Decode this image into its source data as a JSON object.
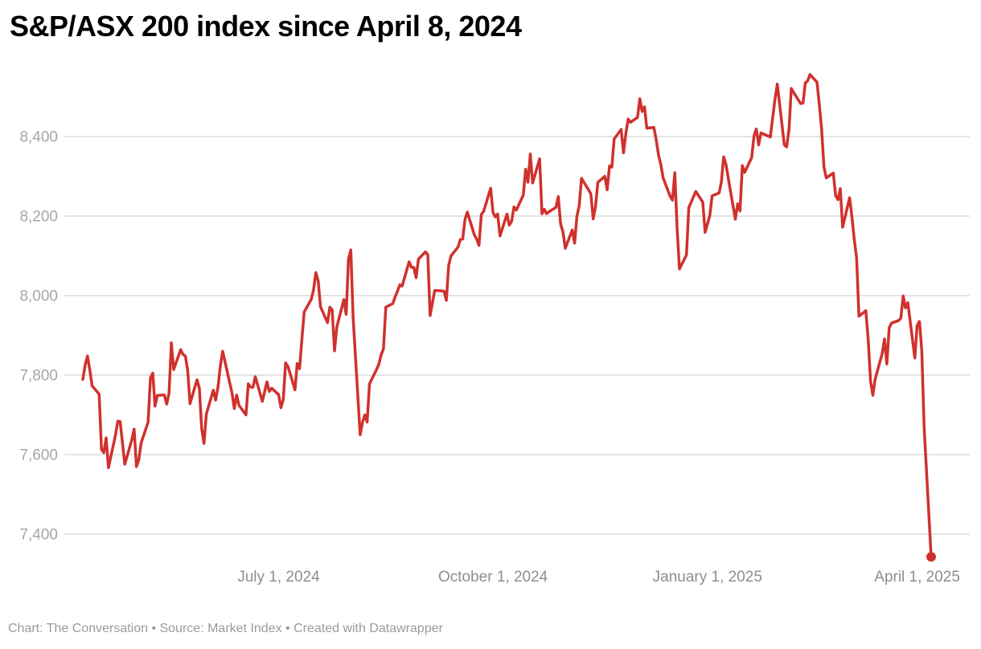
{
  "header": {
    "title": "S&P/ASX 200 index since April 8, 2024"
  },
  "footer": {
    "text": "Chart: The Conversation • Source: Market Index • Created with Datawrapper"
  },
  "colors": {
    "line": "#d0312d",
    "grid": "#dcdcdc",
    "y_labels": "#a6a6a6",
    "x_labels": "#8e8e8e",
    "title": "#000000",
    "footer": "#9b9b9b",
    "background": "#ffffff"
  },
  "chart_data": {
    "type": "line",
    "title": "S&P/ASX 200 index since April 8, 2024",
    "series_name": "S&P/ASX 200 index",
    "xlabel": "",
    "ylabel": "",
    "grid": true,
    "legend_position": "none",
    "end_dot": true,
    "ylim": [
      7329,
      8566
    ],
    "xlim": [
      "2024-04-08",
      "2025-04-07"
    ],
    "y_ticks": [
      {
        "value": 8400,
        "label": "8,400"
      },
      {
        "value": 8200,
        "label": "8,200"
      },
      {
        "value": 8000,
        "label": "8,000"
      },
      {
        "value": 7800,
        "label": "7,800"
      },
      {
        "value": 7600,
        "label": "7,600"
      },
      {
        "value": 7400,
        "label": "7,400"
      }
    ],
    "x_ticks": [
      {
        "date": "2024-07-01",
        "label": "July 1, 2024"
      },
      {
        "date": "2024-10-01",
        "label": "October 1, 2024"
      },
      {
        "date": "2025-01-01",
        "label": "January 1, 2025"
      },
      {
        "date": "2025-04-01",
        "label": "April 1, 2025"
      }
    ],
    "dates": [
      "2024-04-08",
      "2024-04-09",
      "2024-04-10",
      "2024-04-11",
      "2024-04-12",
      "2024-04-15",
      "2024-04-16",
      "2024-04-17",
      "2024-04-18",
      "2024-04-19",
      "2024-04-22",
      "2024-04-23",
      "2024-04-24",
      "2024-04-26",
      "2024-04-29",
      "2024-04-30",
      "2024-05-01",
      "2024-05-02",
      "2024-05-03",
      "2024-05-06",
      "2024-05-07",
      "2024-05-08",
      "2024-05-09",
      "2024-05-10",
      "2024-05-13",
      "2024-05-14",
      "2024-05-15",
      "2024-05-16",
      "2024-05-17",
      "2024-05-20",
      "2024-05-21",
      "2024-05-22",
      "2024-05-23",
      "2024-05-24",
      "2024-05-27",
      "2024-05-28",
      "2024-05-29",
      "2024-05-30",
      "2024-05-31",
      "2024-06-03",
      "2024-06-04",
      "2024-06-05",
      "2024-06-06",
      "2024-06-07",
      "2024-06-11",
      "2024-06-12",
      "2024-06-13",
      "2024-06-14",
      "2024-06-17",
      "2024-06-18",
      "2024-06-19",
      "2024-06-20",
      "2024-06-21",
      "2024-06-24",
      "2024-06-25",
      "2024-06-26",
      "2024-06-27",
      "2024-06-28",
      "2024-07-01",
      "2024-07-02",
      "2024-07-03",
      "2024-07-04",
      "2024-07-05",
      "2024-07-08",
      "2024-07-09",
      "2024-07-10",
      "2024-07-11",
      "2024-07-12",
      "2024-07-15",
      "2024-07-16",
      "2024-07-17",
      "2024-07-18",
      "2024-07-19",
      "2024-07-22",
      "2024-07-23",
      "2024-07-24",
      "2024-07-25",
      "2024-07-26",
      "2024-07-29",
      "2024-07-30",
      "2024-07-31",
      "2024-08-01",
      "2024-08-02",
      "2024-08-05",
      "2024-08-06",
      "2024-08-07",
      "2024-08-08",
      "2024-08-09",
      "2024-08-12",
      "2024-08-13",
      "2024-08-14",
      "2024-08-15",
      "2024-08-16",
      "2024-08-19",
      "2024-08-20",
      "2024-08-21",
      "2024-08-22",
      "2024-08-23",
      "2024-08-26",
      "2024-08-27",
      "2024-08-28",
      "2024-08-29",
      "2024-08-30",
      "2024-09-02",
      "2024-09-03",
      "2024-09-04",
      "2024-09-05",
      "2024-09-06",
      "2024-09-09",
      "2024-09-10",
      "2024-09-11",
      "2024-09-12",
      "2024-09-13",
      "2024-09-16",
      "2024-09-17",
      "2024-09-18",
      "2024-09-19",
      "2024-09-20",
      "2024-09-23",
      "2024-09-24",
      "2024-09-25",
      "2024-09-26",
      "2024-09-27",
      "2024-09-30",
      "2024-10-01",
      "2024-10-02",
      "2024-10-03",
      "2024-10-04",
      "2024-10-07",
      "2024-10-08",
      "2024-10-09",
      "2024-10-10",
      "2024-10-11",
      "2024-10-14",
      "2024-10-15",
      "2024-10-16",
      "2024-10-17",
      "2024-10-18",
      "2024-10-21",
      "2024-10-22",
      "2024-10-23",
      "2024-10-24",
      "2024-10-25",
      "2024-10-28",
      "2024-10-29",
      "2024-10-30",
      "2024-10-31",
      "2024-11-01",
      "2024-11-04",
      "2024-11-05",
      "2024-11-06",
      "2024-11-07",
      "2024-11-08",
      "2024-11-11",
      "2024-11-12",
      "2024-11-13",
      "2024-11-14",
      "2024-11-15",
      "2024-11-18",
      "2024-11-19",
      "2024-11-20",
      "2024-11-21",
      "2024-11-22",
      "2024-11-25",
      "2024-11-26",
      "2024-11-27",
      "2024-11-28",
      "2024-11-29",
      "2024-12-02",
      "2024-12-03",
      "2024-12-04",
      "2024-12-05",
      "2024-12-06",
      "2024-12-09",
      "2024-12-10",
      "2024-12-11",
      "2024-12-12",
      "2024-12-13",
      "2024-12-16",
      "2024-12-17",
      "2024-12-18",
      "2024-12-19",
      "2024-12-20",
      "2024-12-23",
      "2024-12-24",
      "2024-12-27",
      "2024-12-30",
      "2024-12-31",
      "2025-01-02",
      "2025-01-03",
      "2025-01-06",
      "2025-01-07",
      "2025-01-08",
      "2025-01-09",
      "2025-01-10",
      "2025-01-13",
      "2025-01-14",
      "2025-01-15",
      "2025-01-16",
      "2025-01-17",
      "2025-01-20",
      "2025-01-21",
      "2025-01-22",
      "2025-01-23",
      "2025-01-24",
      "2025-01-28",
      "2025-01-29",
      "2025-01-30",
      "2025-01-31",
      "2025-02-03",
      "2025-02-04",
      "2025-02-05",
      "2025-02-06",
      "2025-02-07",
      "2025-02-10",
      "2025-02-11",
      "2025-02-12",
      "2025-02-13",
      "2025-02-14",
      "2025-02-17",
      "2025-02-18",
      "2025-02-19",
      "2025-02-20",
      "2025-02-21",
      "2025-02-24",
      "2025-02-25",
      "2025-02-26",
      "2025-02-27",
      "2025-02-28",
      "2025-03-03",
      "2025-03-04",
      "2025-03-05",
      "2025-03-06",
      "2025-03-07",
      "2025-03-10",
      "2025-03-11",
      "2025-03-12",
      "2025-03-13",
      "2025-03-14",
      "2025-03-17",
      "2025-03-18",
      "2025-03-19",
      "2025-03-20",
      "2025-03-21",
      "2025-03-24",
      "2025-03-25",
      "2025-03-26",
      "2025-03-27",
      "2025-03-28",
      "2025-03-31",
      "2025-04-01",
      "2025-04-02",
      "2025-04-03",
      "2025-04-04",
      "2025-04-07"
    ],
    "values": [
      7789,
      7825,
      7848,
      7813,
      7773,
      7752,
      7613,
      7605,
      7642,
      7567,
      7649,
      7684,
      7683,
      7576,
      7637,
      7664,
      7570,
      7587,
      7629,
      7682,
      7793,
      7805,
      7722,
      7749,
      7750,
      7727,
      7754,
      7881,
      7814,
      7864,
      7852,
      7848,
      7812,
      7728,
      7788,
      7767,
      7666,
      7628,
      7702,
      7762,
      7737,
      7770,
      7822,
      7860,
      7755,
      7716,
      7750,
      7724,
      7700,
      7778,
      7770,
      7769,
      7796,
      7734,
      7758,
      7783,
      7759,
      7767,
      7751,
      7718,
      7739,
      7831,
      7822,
      7763,
      7829,
      7816,
      7889,
      7959,
      7990,
      8014,
      8058,
      8037,
      7972,
      7932,
      7971,
      7964,
      7861,
      7921,
      7990,
      7953,
      8092,
      8115,
      7943,
      7650,
      7681,
      7700,
      7682,
      7778,
      7814,
      7827,
      7851,
      7866,
      7971,
      7980,
      7997,
      8011,
      8027,
      8024,
      8085,
      8071,
      8071,
      8045,
      8092,
      8110,
      8103,
      7950,
      7982,
      8013,
      8012,
      8011,
      7988,
      8076,
      8100,
      8122,
      8141,
      8142,
      8192,
      8210,
      8153,
      8142,
      8126,
      8204,
      8212,
      8270,
      8209,
      8198,
      8205,
      8150,
      8205,
      8177,
      8187,
      8223,
      8215,
      8253,
      8318,
      8285,
      8356,
      8283,
      8344,
      8206,
      8217,
      8206,
      8211,
      8222,
      8249,
      8180,
      8160,
      8119,
      8165,
      8132,
      8200,
      8226,
      8295,
      8266,
      8256,
      8193,
      8224,
      8285,
      8300,
      8266,
      8326,
      8323,
      8394,
      8418,
      8359,
      8407,
      8444,
      8436,
      8448,
      8495,
      8463,
      8475,
      8421,
      8423,
      8393,
      8354,
      8330,
      8296,
      8250,
      8240,
      8309,
      8168,
      8067,
      8102,
      8221,
      8262,
      8235,
      8159,
      8201,
      8251,
      8258,
      8285,
      8349,
      8329,
      8294,
      8192,
      8231,
      8213,
      8327,
      8310,
      8347,
      8402,
      8419,
      8379,
      8409,
      8399,
      8447,
      8494,
      8532,
      8379,
      8374,
      8417,
      8521,
      8511,
      8483,
      8484,
      8535,
      8540,
      8556,
      8537,
      8481,
      8419,
      8323,
      8296,
      8308,
      8252,
      8241,
      8269,
      8172,
      8246,
      8198,
      8141,
      8095,
      7948,
      7962,
      7890,
      7786,
      7749,
      7790,
      7854,
      7891,
      7828,
      7919,
      7931,
      7937,
      7943,
      7999,
      7969,
      7982,
      7843,
      7925,
      7935,
      7860,
      7668,
      7343
    ],
    "last_point": {
      "date": "2025-04-07",
      "value": 7343
    }
  }
}
